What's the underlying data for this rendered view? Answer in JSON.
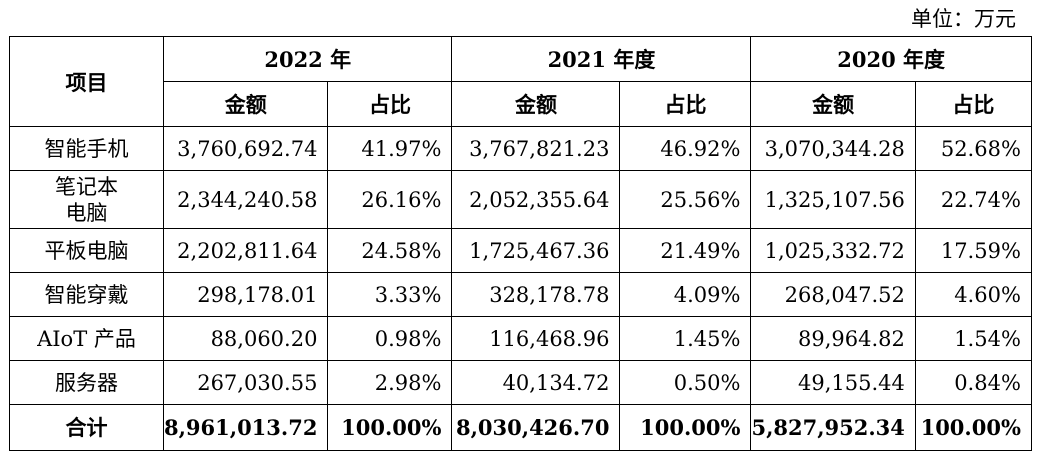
{
  "unit_note": "单位：万元",
  "header": {
    "item": "项目",
    "years": [
      "2022 年",
      "2021 年度",
      "2020 年度"
    ],
    "amount": "金额",
    "ratio": "占比"
  },
  "rows": [
    {
      "name": "智能手机",
      "v": [
        "3,760,692.74",
        "41.97%",
        "3,767,821.23",
        "46.92%",
        "3,070,344.28",
        "52.68%"
      ]
    },
    {
      "name": "笔记本电脑",
      "name_line1": "笔记本",
      "name_line2": "电脑",
      "v": [
        "2,344,240.58",
        "26.16%",
        "2,052,355.64",
        "25.56%",
        "1,325,107.56",
        "22.74%"
      ]
    },
    {
      "name": "平板电脑",
      "v": [
        "2,202,811.64",
        "24.58%",
        "1,725,467.36",
        "21.49%",
        "1,025,332.72",
        "17.59%"
      ]
    },
    {
      "name": "智能穿戴",
      "v": [
        "298,178.01",
        "3.33%",
        "328,178.78",
        "4.09%",
        "268,047.52",
        "4.60%"
      ]
    },
    {
      "name": "AIoT 产品",
      "v": [
        "88,060.20",
        "0.98%",
        "116,468.96",
        "1.45%",
        "89,964.82",
        "1.54%"
      ]
    },
    {
      "name": "服务器",
      "v": [
        "267,030.55",
        "2.98%",
        "40,134.72",
        "0.50%",
        "49,155.44",
        "0.84%"
      ]
    }
  ],
  "total": {
    "name": "合计",
    "v": [
      "8,961,013.72",
      "100.00%",
      "8,030,426.70",
      "100.00%",
      "5,827,952.34",
      "100.00%"
    ]
  }
}
